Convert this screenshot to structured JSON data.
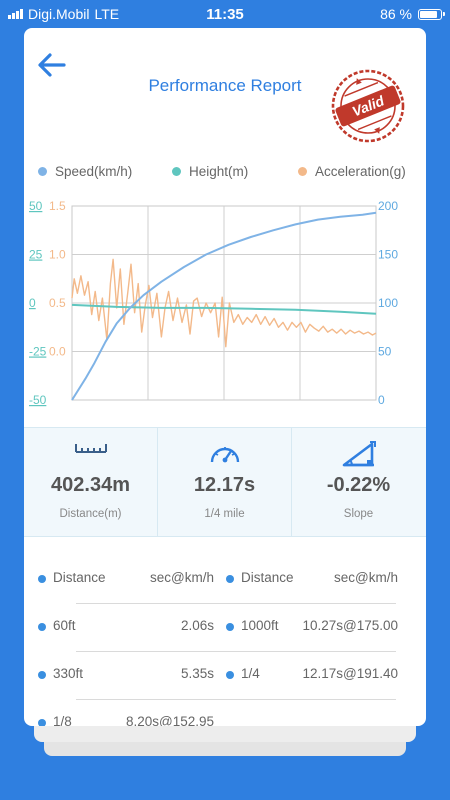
{
  "status": {
    "carrier": "Digi.Mobil",
    "network": "LTE",
    "time": "11:35",
    "battery": "86 %"
  },
  "header": {
    "title": "Performance Report",
    "stamp_text": "Valid",
    "stamp_color": "#c0392b"
  },
  "legend": [
    {
      "label": "Speed(km/h)",
      "color": "#7fb3e6"
    },
    {
      "label": "Height(m)",
      "color": "#5fc6bf"
    },
    {
      "label": "Acceleration(g)",
      "color": "#f3b98a"
    }
  ],
  "chart_data": {
    "type": "line",
    "grid": true,
    "axes": {
      "height_left": {
        "ticks": [
          "50",
          "25",
          "0",
          "-25",
          "-50"
        ],
        "range": [
          -50,
          50
        ],
        "color": "#5fc6bf"
      },
      "accel_left": {
        "ticks": [
          "1.5",
          "1.0",
          "0.5",
          "0.0"
        ],
        "range": [
          -0.5,
          1.5
        ],
        "color": "#f3b98a"
      },
      "speed_right": {
        "ticks": [
          "200",
          "150",
          "100",
          "50",
          "0"
        ],
        "range": [
          0,
          200
        ],
        "color": "#5fa9e0"
      }
    },
    "series": [
      {
        "name": "Speed(km/h)",
        "axis": "speed_right",
        "color": "#7fb3e6",
        "points": [
          [
            0,
            0
          ],
          [
            0.3,
            22
          ],
          [
            0.5,
            38
          ],
          [
            0.75,
            60
          ],
          [
            1,
            79
          ],
          [
            1.3,
            95
          ],
          [
            1.6,
            108
          ],
          [
            2,
            122
          ],
          [
            2.5,
            137
          ],
          [
            3,
            150
          ],
          [
            3.5,
            160
          ],
          [
            4,
            168
          ],
          [
            4.5,
            175
          ],
          [
            5,
            181
          ],
          [
            5.5,
            186
          ],
          [
            6,
            189
          ],
          [
            6.5,
            191
          ],
          [
            6.8,
            193
          ]
        ]
      },
      {
        "name": "Height(m)",
        "axis": "height_left",
        "color": "#5fc6bf",
        "points": [
          [
            0,
            -1
          ],
          [
            1,
            -2
          ],
          [
            2,
            -2.5
          ],
          [
            3,
            -2.5
          ],
          [
            4,
            -3
          ],
          [
            5,
            -3.5
          ],
          [
            6,
            -4.5
          ],
          [
            6.8,
            -5.5
          ]
        ]
      },
      {
        "name": "Acceleration(g)",
        "axis": "accel_left",
        "color": "#f3b98a",
        "points": [
          [
            0,
            0.55
          ],
          [
            0.05,
            0.75
          ],
          [
            0.12,
            0.6
          ],
          [
            0.2,
            0.78
          ],
          [
            0.28,
            0.58
          ],
          [
            0.36,
            0.72
          ],
          [
            0.44,
            0.38
          ],
          [
            0.52,
            0.62
          ],
          [
            0.6,
            0.32
          ],
          [
            0.68,
            0.55
          ],
          [
            0.78,
            0.12
          ],
          [
            0.86,
            0.7
          ],
          [
            0.92,
            0.95
          ],
          [
            1.0,
            0.45
          ],
          [
            1.08,
            0.85
          ],
          [
            1.16,
            0.28
          ],
          [
            1.25,
            0.62
          ],
          [
            1.32,
            0.9
          ],
          [
            1.4,
            0.4
          ],
          [
            1.48,
            0.7
          ],
          [
            1.56,
            0.2
          ],
          [
            1.64,
            0.48
          ],
          [
            1.72,
            0.68
          ],
          [
            1.8,
            0.35
          ],
          [
            1.9,
            0.6
          ],
          [
            2.0,
            0.15
          ],
          [
            2.08,
            0.45
          ],
          [
            2.16,
            0.62
          ],
          [
            2.26,
            0.32
          ],
          [
            2.36,
            0.55
          ],
          [
            2.46,
            0.3
          ],
          [
            2.56,
            0.48
          ],
          [
            2.64,
            0.18
          ],
          [
            2.72,
            0.52
          ],
          [
            2.8,
            0.55
          ],
          [
            2.9,
            0.36
          ],
          [
            3.0,
            0.5
          ],
          [
            3.1,
            0.4
          ],
          [
            3.2,
            0.5
          ],
          [
            3.28,
            0.15
          ],
          [
            3.36,
            0.56
          ],
          [
            3.44,
            0.05
          ],
          [
            3.52,
            0.5
          ],
          [
            3.62,
            0.3
          ],
          [
            3.72,
            0.38
          ],
          [
            3.82,
            0.28
          ],
          [
            3.92,
            0.35
          ],
          [
            4.02,
            0.3
          ],
          [
            4.12,
            0.38
          ],
          [
            4.22,
            0.28
          ],
          [
            4.32,
            0.36
          ],
          [
            4.42,
            0.27
          ],
          [
            4.52,
            0.34
          ],
          [
            4.62,
            0.25
          ],
          [
            4.72,
            0.3
          ],
          [
            4.82,
            0.22
          ],
          [
            4.92,
            0.3
          ],
          [
            5.02,
            0.25
          ],
          [
            5.12,
            0.3
          ],
          [
            5.22,
            0.2
          ],
          [
            5.32,
            0.28
          ],
          [
            5.42,
            0.24
          ],
          [
            5.52,
            0.21
          ],
          [
            5.62,
            0.26
          ],
          [
            5.72,
            0.2
          ],
          [
            5.82,
            0.23
          ],
          [
            5.92,
            0.19
          ],
          [
            6.02,
            0.23
          ],
          [
            6.12,
            0.18
          ],
          [
            6.22,
            0.22
          ],
          [
            6.32,
            0.19
          ],
          [
            6.42,
            0.21
          ],
          [
            6.52,
            0.18
          ],
          [
            6.62,
            0.2
          ],
          [
            6.72,
            0.17
          ],
          [
            6.8,
            0.19
          ]
        ]
      }
    ]
  },
  "stats": [
    {
      "icon": "ruler-icon",
      "value": "402.34m",
      "label": "Distance(m)"
    },
    {
      "icon": "speedometer-icon",
      "value": "12.17s",
      "label": "1/4 mile"
    },
    {
      "icon": "slope-icon",
      "value": "-0.22%",
      "label": "Slope"
    }
  ],
  "table": {
    "header": [
      {
        "k": "Distance",
        "v": "sec@km/h"
      },
      {
        "k": "Distance",
        "v": "sec@km/h"
      }
    ],
    "rows": [
      [
        {
          "k": "60ft",
          "v": "2.06s"
        },
        {
          "k": "1000ft",
          "v": "10.27s@175.00"
        }
      ],
      [
        {
          "k": "330ft",
          "v": "5.35s"
        },
        {
          "k": "1/4",
          "v": "12.17s@191.40"
        }
      ],
      [
        {
          "k": "1/8",
          "v": "8.20s@152.95"
        },
        null
      ]
    ]
  }
}
